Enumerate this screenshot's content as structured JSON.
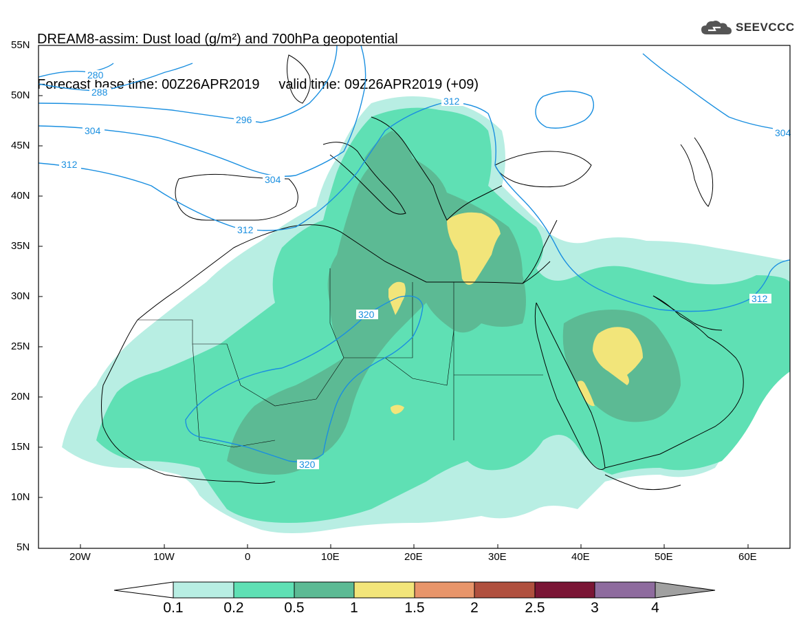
{
  "title": {
    "line1": "DREAM8-assim: Dust load (g/m²) and 700hPa geopotential",
    "base_time_label": "Forecast base time: 00Z26APR2019",
    "valid_time_label": "valid time: 09Z26APR2019 (+09)"
  },
  "logo": {
    "text": "SEEVCCC",
    "icon": "cloud-logo-icon"
  },
  "axes": {
    "lat_labels": [
      "55N",
      "50N",
      "45N",
      "40N",
      "35N",
      "30N",
      "25N",
      "20N",
      "15N",
      "10N",
      "5N"
    ],
    "lon_labels": [
      "20W",
      "10W",
      "0",
      "10E",
      "20E",
      "30E",
      "40E",
      "50E",
      "60E"
    ]
  },
  "contours": {
    "labels": [
      "280",
      "288",
      "296",
      "304",
      "312",
      "304",
      "312",
      "312",
      "312",
      "320",
      "320",
      "304"
    ]
  },
  "colorbar": {
    "labels": [
      "0.1",
      "0.2",
      "0.5",
      "1",
      "1.5",
      "2",
      "2.5",
      "3",
      "4"
    ],
    "colors": [
      "#ffffff",
      "#b8eee3",
      "#5fe0b4",
      "#5cba94",
      "#f2e57a",
      "#e8956a",
      "#b0503e",
      "#7a1535",
      "#8e6b9e",
      "#a0a0a0"
    ]
  },
  "colors": {
    "dust_light": "#b8eee3",
    "dust_mid": "#5fe0b4",
    "dust_dark": "#5cba94",
    "dust_yellow": "#f2e57a",
    "contour": "#1a8fe0",
    "coast": "#000000"
  }
}
